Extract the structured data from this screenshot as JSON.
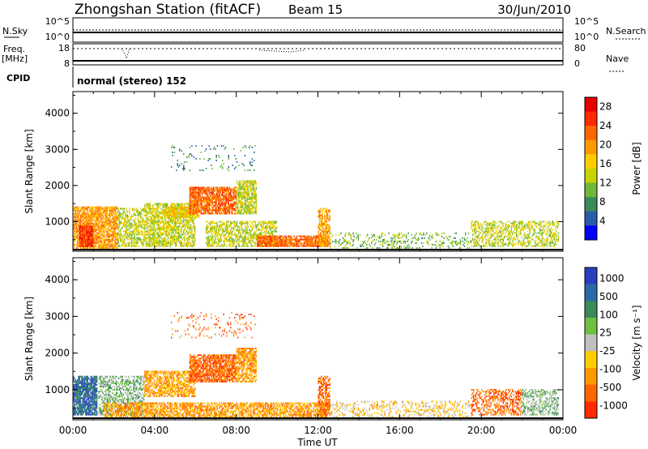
{
  "header": {
    "station": "Zhongshan Station (fitACF)",
    "beam": "Beam 15",
    "date": "30/Jun/2010"
  },
  "status": {
    "nsky_label": "N.Sky",
    "nsky_top": "10^5",
    "nsky_bottom": "10^0",
    "nsearch_label": "N.Search",
    "nsearch_top": "10^5",
    "nsearch_bottom": "10^0",
    "freq_label": "Freq.",
    "freq_unit": "[MHz]",
    "freq_top": "18",
    "freq_bottom": "8",
    "nave_label": "Nave",
    "nave_top": "80",
    "nave_bottom": "0",
    "cpid_label": "CPID",
    "cpid_text": "normal (stereo) 152"
  },
  "colors": {
    "power": [
      "#0000ff",
      "#2a5caa",
      "#3b8a5a",
      "#6fb83a",
      "#c8d400",
      "#ffcc00",
      "#ff9900",
      "#ff6600",
      "#ff2a00",
      "#e60000"
    ],
    "velocity": [
      "#2a3fbf",
      "#2a6aa8",
      "#3a8a5a",
      "#6fc040",
      "#c0c0c0",
      "#ffcc00",
      "#ff9900",
      "#ff6600",
      "#ff2a00"
    ]
  },
  "chart_data": [
    {
      "type": "heatmap",
      "name": "power",
      "ylabel": "Slant Range [km]",
      "xlabel": "",
      "colorbar_label": "Power [dB]",
      "colorbar_ticks": [
        "4",
        "8",
        "12",
        "16",
        "20",
        "24",
        "28"
      ],
      "x_tick_labels": [
        "00:00",
        "04:00",
        "08:00",
        "12:00",
        "16:00",
        "20:00",
        "00:00"
      ],
      "y_tick_labels": [
        "1000",
        "2000",
        "3000",
        "4000"
      ],
      "xlim_hours": [
        0,
        24
      ],
      "ylim_km": [
        180,
        4600
      ],
      "gaps": [
        {
          "hours": [
            1.2,
            1.25
          ]
        },
        {
          "hours": [
            7.3,
            7.4
          ]
        }
      ],
      "blobs": [
        {
          "t0": 0.0,
          "t1": 2.2,
          "r0": 250,
          "r1": 1400,
          "level": 6,
          "density": 0.85
        },
        {
          "t0": 0.3,
          "t1": 1.0,
          "r0": 300,
          "r1": 900,
          "level": 8,
          "density": 0.9
        },
        {
          "t0": 2.2,
          "t1": 3.5,
          "r0": 300,
          "r1": 1400,
          "level": 4,
          "density": 0.55
        },
        {
          "t0": 3.5,
          "t1": 6.0,
          "r0": 300,
          "r1": 1500,
          "level": 4,
          "density": 0.7
        },
        {
          "t0": 4.5,
          "t1": 6.2,
          "r0": 1100,
          "r1": 1400,
          "level": 5,
          "density": 0.8
        },
        {
          "t0": 5.7,
          "t1": 8.0,
          "r0": 1200,
          "r1": 1950,
          "level": 7,
          "density": 0.8
        },
        {
          "t0": 8.0,
          "t1": 9.0,
          "r0": 1200,
          "r1": 2150,
          "level": 4,
          "density": 0.75
        },
        {
          "t0": 6.5,
          "t1": 10.0,
          "r0": 300,
          "r1": 1000,
          "level": 4,
          "density": 0.6
        },
        {
          "t0": 9.0,
          "t1": 12.5,
          "r0": 300,
          "r1": 600,
          "level": 7,
          "density": 0.85
        },
        {
          "t0": 12.0,
          "t1": 12.6,
          "r0": 300,
          "r1": 1400,
          "level": 6,
          "density": 0.7
        },
        {
          "t0": 12.6,
          "t1": 19.5,
          "r0": 250,
          "r1": 700,
          "level": 3,
          "density": 0.25
        },
        {
          "t0": 19.5,
          "t1": 23.8,
          "r0": 300,
          "r1": 1000,
          "level": 4,
          "density": 0.5
        },
        {
          "t0": 4.8,
          "t1": 9.0,
          "r0": 2400,
          "r1": 3100,
          "level": 2,
          "density": 0.08
        }
      ]
    },
    {
      "type": "heatmap",
      "name": "velocity",
      "ylabel": "Slant Range [km]",
      "xlabel": "Time UT",
      "colorbar_label": "Velocity [m s⁻¹]",
      "colorbar_ticks": [
        "1000",
        "500",
        "100",
        "25",
        "-25",
        "-100",
        "-500",
        "-1000"
      ],
      "x_tick_labels": [
        "00:00",
        "04:00",
        "08:00",
        "12:00",
        "16:00",
        "20:00",
        "00:00"
      ],
      "y_tick_labels": [
        "1000",
        "2000",
        "3000",
        "4000"
      ],
      "xlim_hours": [
        0,
        24
      ],
      "ylim_km": [
        180,
        4600
      ],
      "gaps": [
        {
          "hours": [
            1.2,
            1.25
          ]
        },
        {
          "hours": [
            7.3,
            7.4
          ]
        }
      ],
      "blobs": [
        {
          "t0": 0.0,
          "t1": 1.2,
          "r0": 300,
          "r1": 1400,
          "level": 1,
          "density": 0.85
        },
        {
          "t0": 1.25,
          "t1": 3.5,
          "r0": 300,
          "r1": 1400,
          "level": 3,
          "density": 0.55
        },
        {
          "t0": 3.5,
          "t1": 6.0,
          "r0": 800,
          "r1": 1500,
          "level": 6,
          "density": 0.7
        },
        {
          "t0": 5.7,
          "t1": 8.0,
          "r0": 1200,
          "r1": 1950,
          "level": 7,
          "density": 0.8
        },
        {
          "t0": 8.0,
          "t1": 9.0,
          "r0": 1200,
          "r1": 2150,
          "level": 6,
          "density": 0.75
        },
        {
          "t0": 1.5,
          "t1": 12.5,
          "r0": 250,
          "r1": 650,
          "level": 6,
          "density": 0.7
        },
        {
          "t0": 12.0,
          "t1": 12.6,
          "r0": 300,
          "r1": 1400,
          "level": 7,
          "density": 0.6
        },
        {
          "t0": 12.6,
          "t1": 19.5,
          "r0": 250,
          "r1": 700,
          "level": 5,
          "density": 0.3
        },
        {
          "t0": 19.5,
          "t1": 22.0,
          "r0": 300,
          "r1": 1000,
          "level": 7,
          "density": 0.5
        },
        {
          "t0": 22.0,
          "t1": 23.8,
          "r0": 300,
          "r1": 1000,
          "level": 3,
          "density": 0.5
        },
        {
          "t0": 4.8,
          "t1": 9.0,
          "r0": 2400,
          "r1": 3100,
          "level": 7,
          "density": 0.08
        }
      ]
    }
  ]
}
